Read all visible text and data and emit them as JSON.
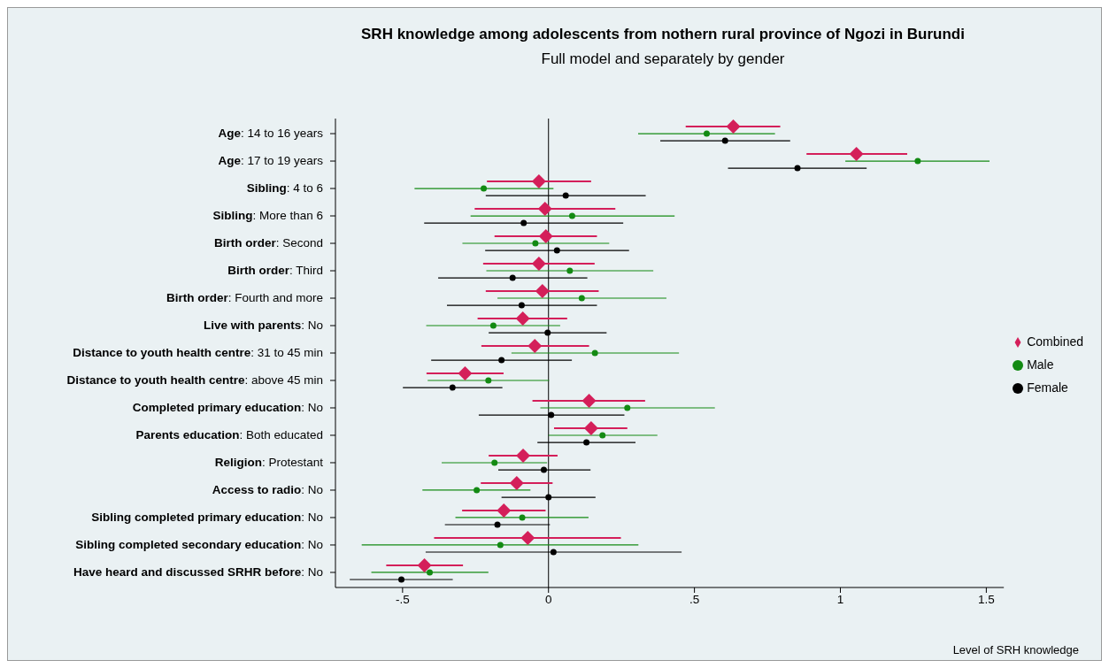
{
  "chart_data": {
    "type": "scatter",
    "orientation": "horizontal",
    "title": "SRH knowledge among adolescents from nothern rural province of Ngozi in Burundi",
    "subtitle": "Full model and separately by gender",
    "xlabel": "Level of SRH knowledge",
    "categories": [
      "Age: 14 to 16 years",
      "Age: 17 to 19 years",
      "Sibling: 4 to 6",
      "Sibling: More than 6",
      "Birth order: Second",
      "Birth order: Third",
      "Birth order: Fourth and more",
      "Live with parents: No",
      "Distance to youth health centre: 31 to 45 min",
      "Distance to youth health centre: above 45 min",
      "Completed primary education: No",
      "Parents education: Both educated",
      "Religion: Protestant",
      "Access to radio: No",
      "Sibling completed primary education: No",
      "Sibling completed secondary education: No",
      "Have heard and discussed SRHR before: No"
    ],
    "series": [
      {
        "name": "Combined",
        "color": "#d41f5a",
        "marker": "diamond",
        "values": [
          0.633,
          1.055,
          -0.033,
          -0.012,
          -0.009,
          -0.033,
          -0.021,
          -0.088,
          -0.047,
          -0.286,
          0.139,
          0.146,
          -0.087,
          -0.109,
          -0.153,
          -0.071,
          -0.425
        ],
        "errors": [
          [
            0.47,
            0.794
          ],
          [
            0.884,
            1.229
          ],
          [
            -0.211,
            0.146
          ],
          [
            -0.253,
            0.229
          ],
          [
            -0.185,
            0.166
          ],
          [
            -0.224,
            0.158
          ],
          [
            -0.215,
            0.172
          ],
          [
            -0.243,
            0.064
          ],
          [
            -0.23,
            0.139
          ],
          [
            -0.418,
            -0.154
          ],
          [
            -0.055,
            0.331
          ],
          [
            0.019,
            0.27
          ],
          [
            -0.205,
            0.031
          ],
          [
            -0.232,
            0.014
          ],
          [
            -0.296,
            -0.01
          ],
          [
            -0.392,
            0.248
          ],
          [
            -0.556,
            -0.293
          ]
        ]
      },
      {
        "name": "Male",
        "color": "#138a13",
        "marker": "circle",
        "values": [
          0.542,
          1.265,
          -0.222,
          0.081,
          -0.045,
          0.073,
          0.114,
          -0.189,
          0.159,
          -0.206,
          0.27,
          0.185,
          -0.185,
          -0.246,
          -0.09,
          -0.165,
          -0.407
        ],
        "errors": [
          [
            0.307,
            0.776
          ],
          [
            1.017,
            1.511
          ],
          [
            -0.459,
            0.017
          ],
          [
            -0.267,
            0.432
          ],
          [
            -0.295,
            0.208
          ],
          [
            -0.213,
            0.359
          ],
          [
            -0.175,
            0.404
          ],
          [
            -0.419,
            0.04
          ],
          [
            -0.127,
            0.447
          ],
          [
            -0.414,
            0.002
          ],
          [
            -0.028,
            0.57
          ],
          [
            0,
            0.373
          ],
          [
            -0.366,
            -0.005
          ],
          [
            -0.432,
            -0.062
          ],
          [
            -0.319,
            0.137
          ],
          [
            -0.64,
            0.308
          ],
          [
            -0.607,
            -0.206
          ]
        ]
      },
      {
        "name": "Female",
        "color": "#000000",
        "marker": "circle",
        "values": [
          0.605,
          0.853,
          0.059,
          -0.085,
          0.029,
          -0.123,
          -0.092,
          -0.003,
          -0.161,
          -0.329,
          0.009,
          0.13,
          -0.016,
          0,
          -0.175,
          0.017,
          -0.504
        ],
        "errors": [
          [
            0.383,
            0.828
          ],
          [
            0.615,
            1.09
          ],
          [
            -0.215,
            0.333
          ],
          [
            -0.426,
            0.256
          ],
          [
            -0.217,
            0.276
          ],
          [
            -0.378,
            0.133
          ],
          [
            -0.348,
            0.166
          ],
          [
            -0.205,
            0.199
          ],
          [
            -0.402,
            0.08
          ],
          [
            -0.499,
            -0.158
          ],
          [
            -0.239,
            0.26
          ],
          [
            -0.038,
            0.298
          ],
          [
            -0.172,
            0.144
          ],
          [
            -0.161,
            0.161
          ],
          [
            -0.355,
            0.005
          ],
          [
            -0.421,
            0.456
          ],
          [
            -0.681,
            -0.328
          ]
        ]
      }
    ],
    "xlim": [
      -0.73,
      1.56
    ],
    "xticks": [
      {
        "value": -0.5,
        "label": "-.5"
      },
      0,
      {
        "value": 0.5,
        "label": ".5"
      },
      1,
      1.5
    ],
    "ref_lines": [
      {
        "axis": "x",
        "value": 0,
        "color": "#000000"
      }
    ],
    "grid": false,
    "legend": "right"
  }
}
